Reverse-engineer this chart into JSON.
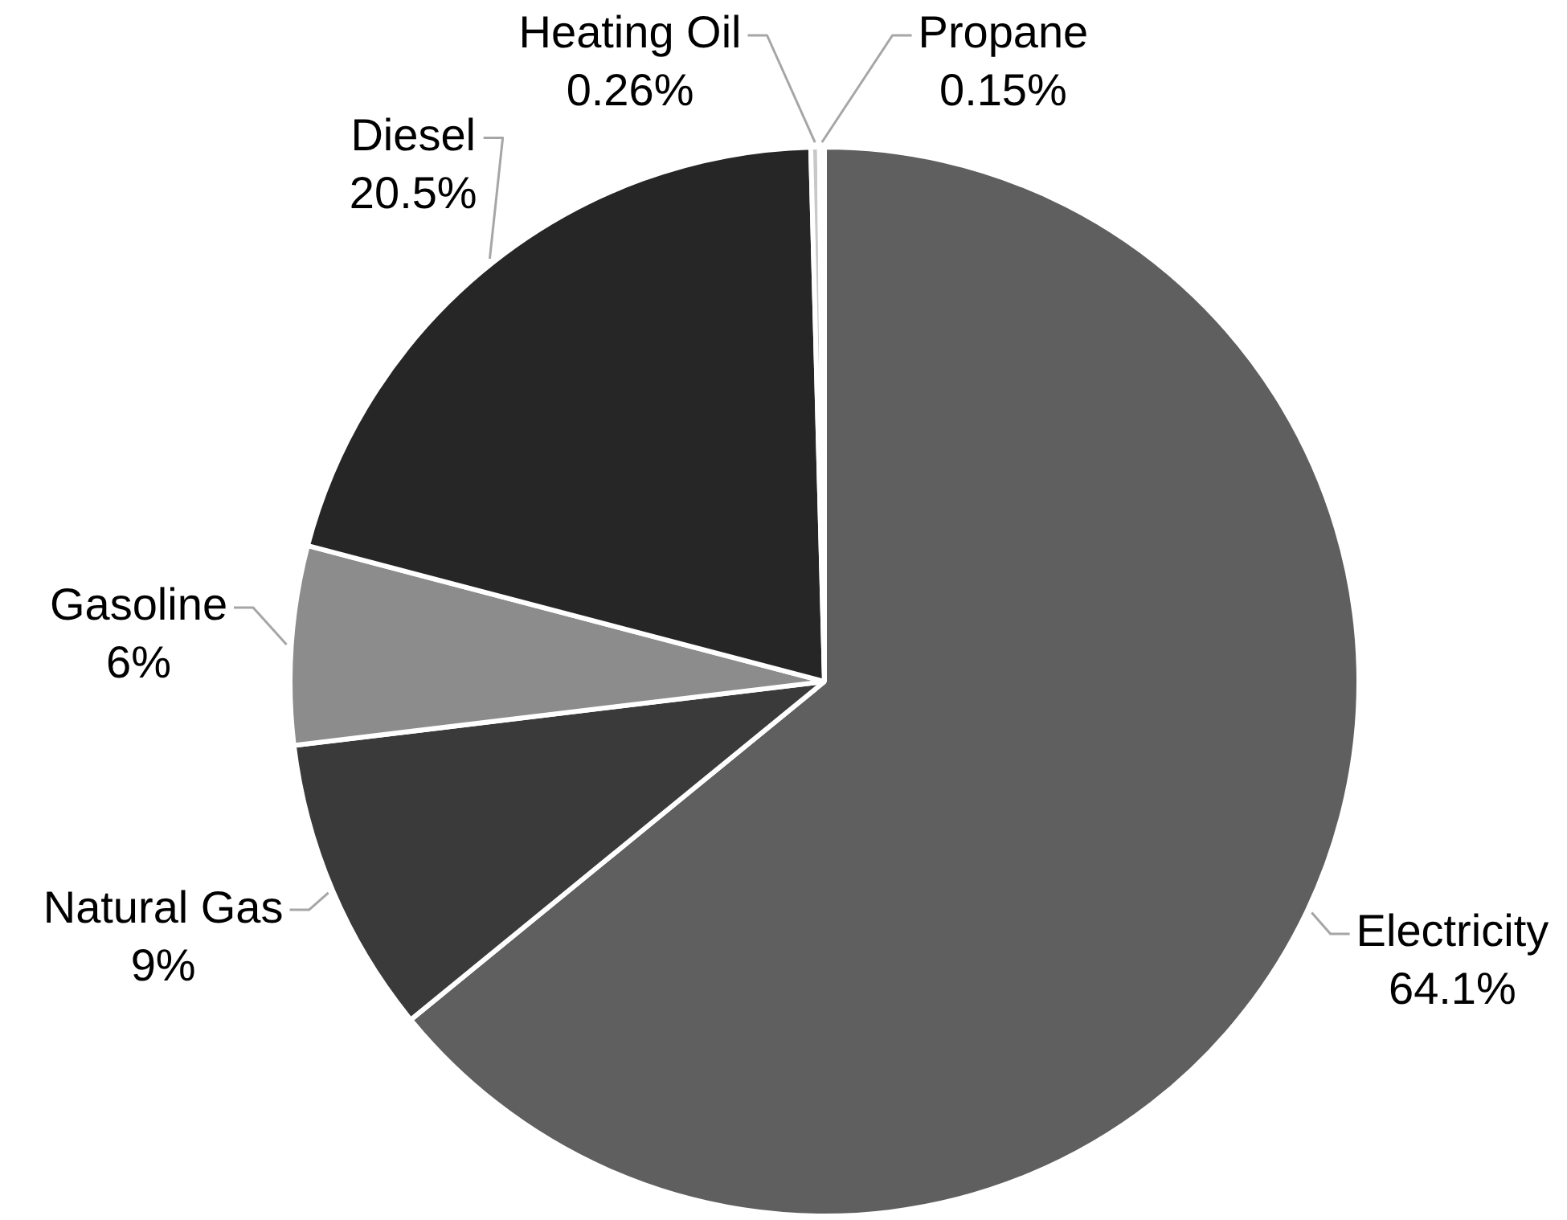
{
  "chart_data": {
    "type": "pie",
    "categories": [
      "Electricity",
      "Natural Gas",
      "Gasoline",
      "Diesel",
      "Heating Oil",
      "Propane"
    ],
    "values": [
      64.1,
      9,
      6,
      20.5,
      0.26,
      0.15
    ],
    "value_labels": [
      "64.1%",
      "9%",
      "6%",
      "20.5%",
      "0.26%",
      "0.15%"
    ],
    "colors": [
      "#5f5f5f",
      "#3a3a3a",
      "#8c8c8c",
      "#262626",
      "#c8c8c8",
      "#e8e8e8"
    ]
  }
}
